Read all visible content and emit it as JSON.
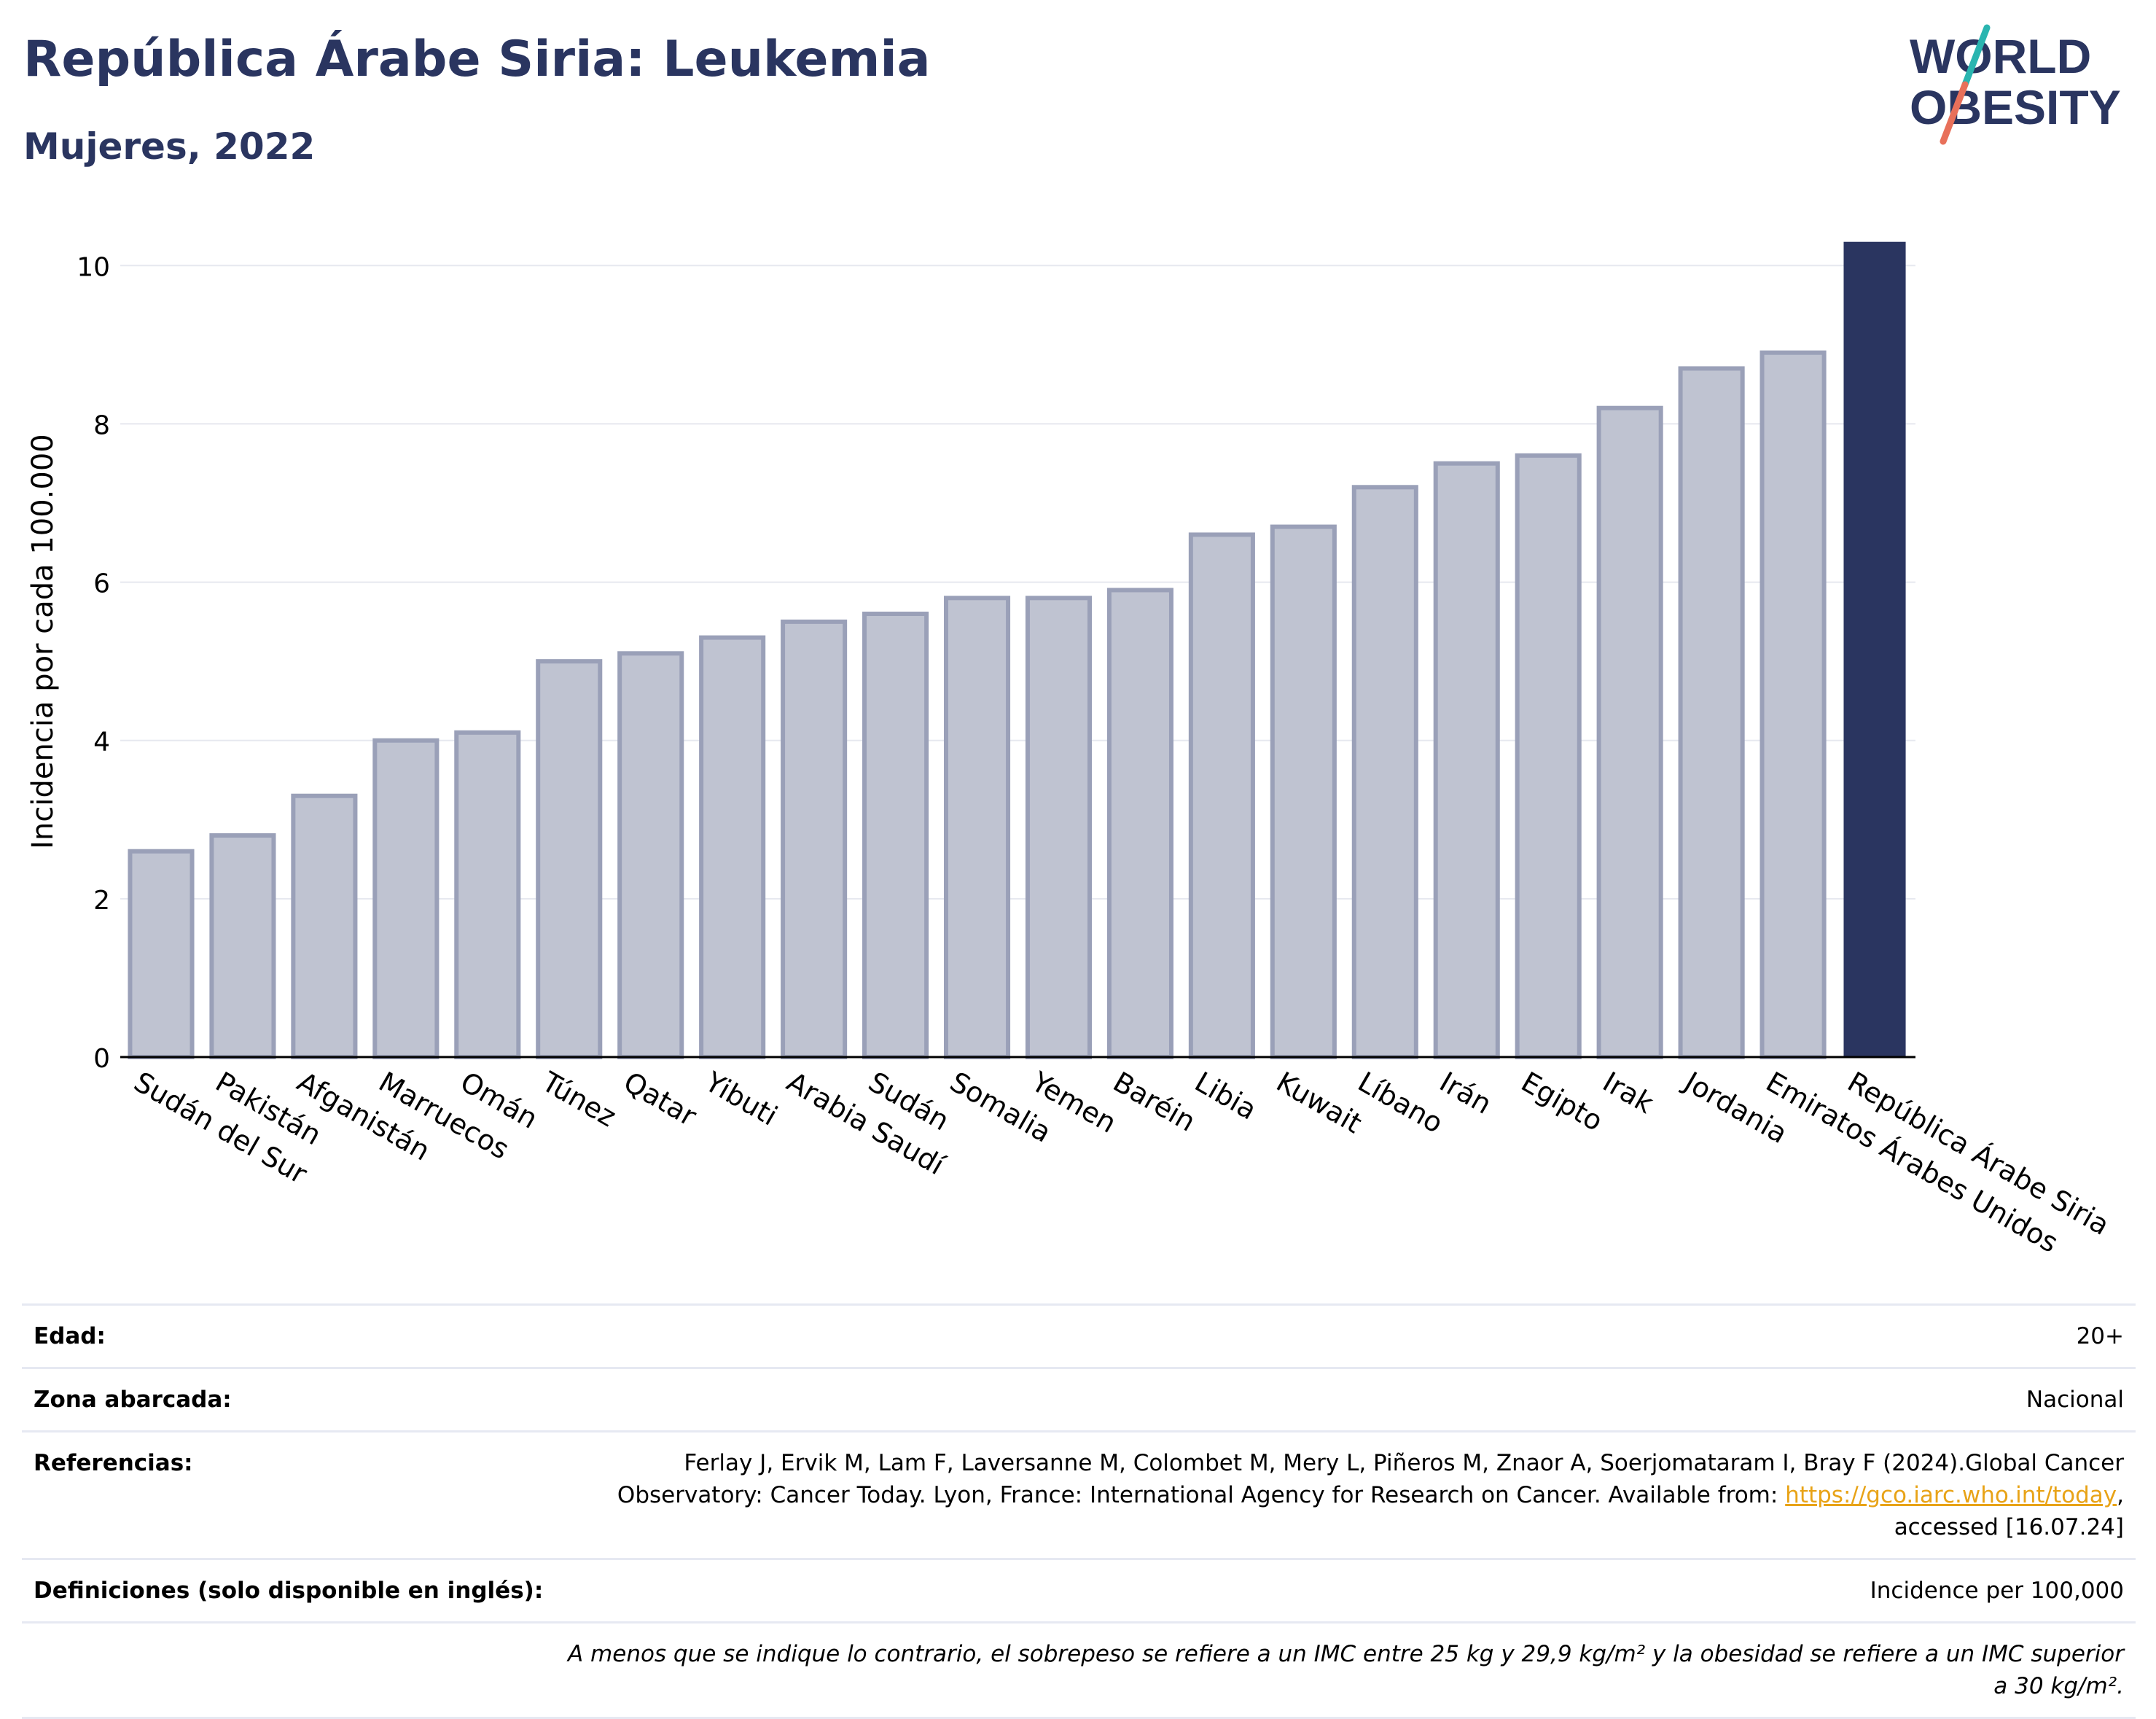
{
  "header": {
    "title": "República Árabe Siria: Leukemia",
    "subtitle": "Mujeres, 2022"
  },
  "logo": {
    "line1": "WORLD",
    "line2": "OBESITY",
    "slash_colors": [
      "#2ab5b0",
      "#e8705a"
    ],
    "text_color": "#2a3560"
  },
  "colors": {
    "bar_default": "#bfc3d1",
    "bar_default_border": "#9aa0b8",
    "bar_highlight": "#2a3560",
    "grid": "#e6e8ef"
  },
  "chart_data": {
    "type": "bar",
    "title": "República Árabe Siria: Leukemia",
    "subtitle": "Mujeres, 2022",
    "xlabel": "",
    "ylabel": "Incidencia por cada 100.000",
    "ylim": [
      0,
      10.5
    ],
    "yticks": [
      0,
      2,
      4,
      6,
      8,
      10
    ],
    "grid": true,
    "highlight": "República Árabe Siria",
    "categories": [
      "Sudán del Sur",
      "Pakistán",
      "Afganistán",
      "Marruecos",
      "Omán",
      "Túnez",
      "Qatar",
      "Yibuti",
      "Arabia Saudí",
      "Sudán",
      "Somalia",
      "Yemen",
      "Baréin",
      "Libia",
      "Kuwait",
      "Líbano",
      "Irán",
      "Egipto",
      "Irak",
      "Jordania",
      "Emiratos Árabes Unidos",
      "República Árabe Siria"
    ],
    "values": [
      2.6,
      2.8,
      3.3,
      4.0,
      4.1,
      5.0,
      5.1,
      5.3,
      5.5,
      5.6,
      5.8,
      5.8,
      5.9,
      6.6,
      6.7,
      7.2,
      7.5,
      7.6,
      8.2,
      8.7,
      8.9,
      10.3
    ]
  },
  "info": {
    "age_label": "Edad:",
    "age_value": "20+",
    "area_label": "Zona abarcada:",
    "area_value": "Nacional",
    "refs_label": "Referencias:",
    "refs_text": "Ferlay J, Ervik M, Lam F, Laversanne M, Colombet M, Mery L, Piñeros M, Znaor A, Soerjomataram I, Bray F (2024).Global Cancer Observatory: Cancer Today. Lyon, France: International Agency for Research on Cancer. Available from:",
    "refs_link": "https://gco.iarc.who.int/today",
    "refs_suffix": ", accessed [16.07.24]",
    "defs_label": "Definiciones (solo disponible en inglés):",
    "defs_value": "Incidence per 100,000",
    "note": "A menos que se indique lo contrario, el sobrepeso se refiere a un IMC entre 25 kg y 29,9 kg/m² y la obesidad se refiere a un IMC superior a 30 kg/m²."
  }
}
